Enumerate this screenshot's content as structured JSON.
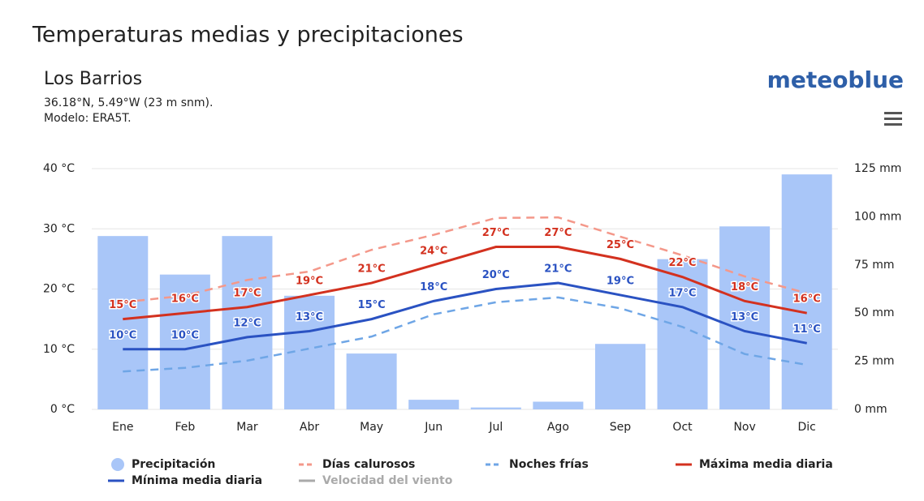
{
  "chart_data": {
    "type": "bar-line",
    "title": "Temperaturas medias y precipitaciones",
    "location": "Los Barrios",
    "coordinates": "36.18°N, 5.49°W (23 m snm).",
    "model": "Modelo: ERA5T.",
    "brand": "meteoblue",
    "categories": [
      "Ene",
      "Feb",
      "Mar",
      "Abr",
      "May",
      "Jun",
      "Jul",
      "Ago",
      "Sep",
      "Oct",
      "Nov",
      "Dic"
    ],
    "ylim": [
      0,
      40
    ],
    "yticks": [
      {
        "value": 0,
        "label": "0 °C"
      },
      {
        "value": 10,
        "label": "10 °C"
      },
      {
        "value": 20,
        "label": "20 °C"
      },
      {
        "value": 30,
        "label": "30 °C"
      },
      {
        "value": 40,
        "label": "40 °C"
      }
    ],
    "y2lim": [
      0,
      125
    ],
    "y2ticks": [
      {
        "value": 0,
        "label": "0 mm"
      },
      {
        "value": 25,
        "label": "25 mm"
      },
      {
        "value": 50,
        "label": "50 mm"
      },
      {
        "value": 75,
        "label": "75 mm"
      },
      {
        "value": 100,
        "label": "100 mm"
      },
      {
        "value": 125,
        "label": "125 mm"
      }
    ],
    "grid": true,
    "series": [
      {
        "name": "Precipitación",
        "kind": "bar",
        "axis": "y2",
        "color": "#a9c6f8",
        "values": [
          90,
          70,
          90,
          59,
          29,
          5,
          1,
          4,
          34,
          78,
          95,
          122
        ]
      },
      {
        "name": "Días calurosos",
        "kind": "dashed",
        "color": "#f4988a",
        "values": [
          17.8,
          18.9,
          21.5,
          22.9,
          26.5,
          29,
          31.8,
          31.9,
          28.7,
          25.6,
          22.1,
          19.3
        ]
      },
      {
        "name": "Noches frías",
        "kind": "dashed",
        "color": "#6fa6e6",
        "values": [
          6.3,
          6.9,
          8.1,
          10.1,
          12.1,
          15.8,
          17.8,
          18.6,
          16.8,
          13.7,
          9.2,
          7.4
        ]
      },
      {
        "name": "Máxima media diaria",
        "kind": "line",
        "color": "#d3311f",
        "values": [
          15,
          16,
          17,
          19,
          21,
          24,
          27,
          27,
          25,
          22,
          18,
          16
        ],
        "value_labels": [
          "15°C",
          "16°C",
          "17°C",
          "19°C",
          "21°C",
          "24°C",
          "27°C",
          "27°C",
          "25°C",
          "22°C",
          "18°C",
          "16°C"
        ]
      },
      {
        "name": "Mínima media diaria",
        "kind": "line",
        "color": "#2a52c2",
        "values": [
          10,
          10,
          12,
          13,
          15,
          18,
          20,
          21,
          19,
          17,
          13,
          11
        ],
        "value_labels": [
          "10°C",
          "10°C",
          "12°C",
          "13°C",
          "15°C",
          "18°C",
          "20°C",
          "21°C",
          "19°C",
          "17°C",
          "13°C",
          "11°C"
        ]
      },
      {
        "name": "Velocidad del viento",
        "kind": "legend-only",
        "color": "#aaaaaa"
      }
    ]
  }
}
